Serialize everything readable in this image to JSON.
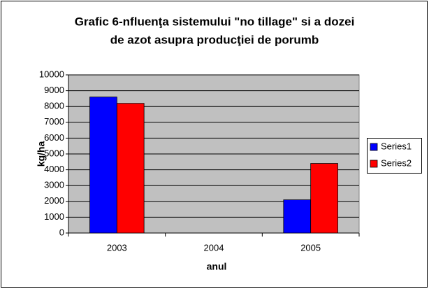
{
  "chart_data": {
    "type": "bar",
    "title": [
      "Grafic 6-nfluenţa sistemului \"no tillage\" si a dozei",
      "de azot asupra producţiei de porumb"
    ],
    "x_label": "anul",
    "y_label": "kg/ha",
    "categories": [
      "2003",
      "2004",
      "2005"
    ],
    "series": [
      {
        "name": "Series1",
        "color": "#0000ff",
        "values": [
          8600,
          null,
          2100
        ]
      },
      {
        "name": "Series2",
        "color": "#ff0000",
        "values": [
          8200,
          null,
          4400
        ]
      }
    ],
    "ylim": [
      0,
      10000
    ],
    "yticks": [
      0,
      1000,
      2000,
      3000,
      4000,
      5000,
      6000,
      7000,
      8000,
      9000,
      10000
    ],
    "grid": true,
    "legend": "right"
  }
}
